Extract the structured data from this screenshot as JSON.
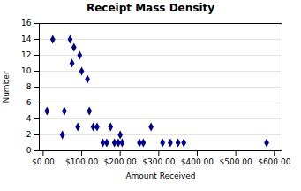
{
  "chart_data": {
    "type": "scatter",
    "title": "Receipt Mass Density",
    "xlabel": "Amount Received",
    "ylabel": "Number",
    "x": [
      10,
      25,
      50,
      55,
      70,
      75,
      80,
      90,
      95,
      100,
      115,
      120,
      130,
      140,
      155,
      165,
      175,
      185,
      195,
      200,
      205,
      250,
      260,
      280,
      310,
      330,
      350,
      365,
      580
    ],
    "values": [
      5,
      14,
      2,
      5,
      14,
      11,
      13,
      3,
      12,
      10,
      9,
      5,
      3,
      3,
      1,
      1,
      3,
      1,
      1,
      2,
      1,
      1,
      1,
      3,
      1,
      1,
      1,
      1,
      1
    ],
    "color": "#00008b",
    "marker": "diamond",
    "xlim": [
      -10,
      620
    ],
    "xticks": [
      {
        "value": 0,
        "label": "$0.00"
      },
      {
        "value": 100,
        "label": "$100.00"
      },
      {
        "value": 200,
        "label": "$200.00"
      },
      {
        "value": 300,
        "label": "$300.00"
      },
      {
        "value": 400,
        "label": "$400.00"
      },
      {
        "value": 500,
        "label": "$500.00"
      },
      {
        "value": 600,
        "label": "$600.00"
      }
    ],
    "ylim": [
      0,
      16
    ],
    "yticks": [
      0,
      2,
      4,
      6,
      8,
      10,
      12,
      14,
      16
    ],
    "grid": true
  }
}
